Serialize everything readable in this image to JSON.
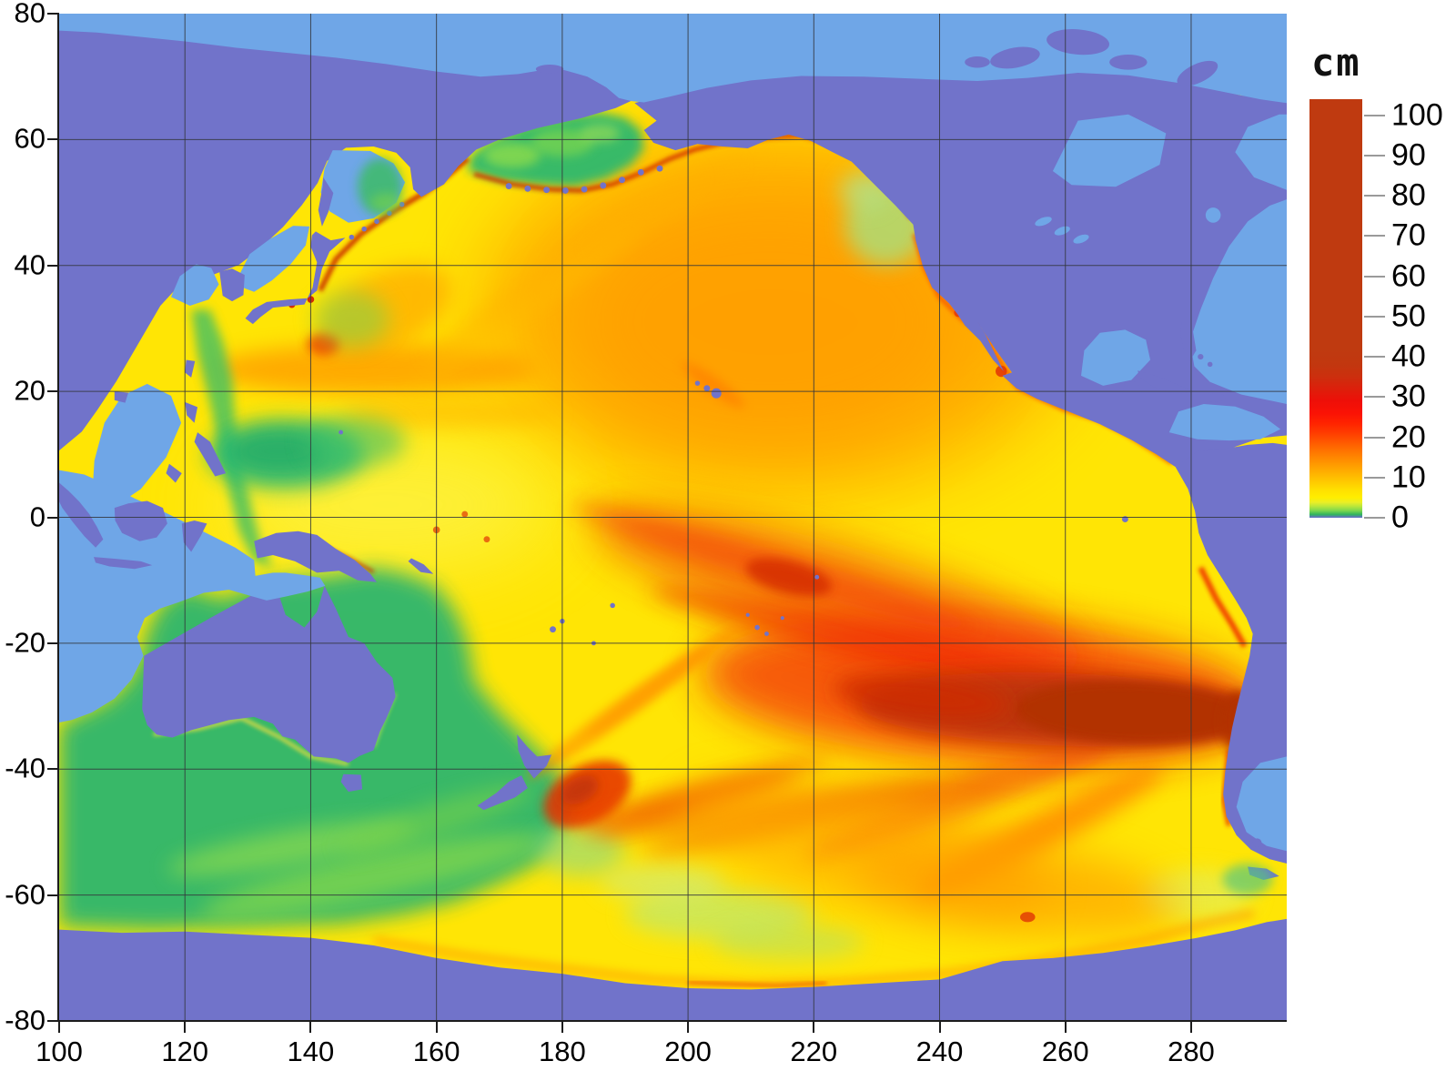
{
  "palette": {
    "bg": "#ffffff",
    "land": "#7173ca",
    "sea": "#6fa6e7",
    "field": "#ffe505",
    "grid": "#33363c",
    "axis": "#1c1c1c",
    "cbTick": "#9a9a9a",
    "green": "#2db66e",
    "orange": "#ffa102",
    "red": "#f32008",
    "beam": "#bc3408"
  },
  "chart_data": {
    "type": "heatmap",
    "title": "",
    "x_axis": {
      "ticks": [
        100,
        120,
        140,
        160,
        180,
        200,
        220,
        240,
        260,
        280
      ],
      "range": [
        100,
        295.2
      ],
      "gridlines": true
    },
    "y_axis": {
      "ticks": [
        80,
        60,
        40,
        20,
        0,
        -20,
        -40,
        -60,
        -80
      ],
      "range": [
        -80,
        80
      ],
      "gridlines": true
    },
    "colorbar": {
      "label": "cm",
      "ticks": [
        0,
        10,
        20,
        30,
        40,
        50,
        60,
        70,
        80,
        90,
        100
      ],
      "range": [
        0,
        104
      ],
      "stops": [
        [
          0,
          "#6b68cf"
        ],
        [
          0.8,
          "#2fb45e"
        ],
        [
          1.8,
          "#7ed74d"
        ],
        [
          2.8,
          "#b7e63b"
        ],
        [
          3.8,
          "#e9ef27"
        ],
        [
          5,
          "#ffee00"
        ],
        [
          7,
          "#ffdf00"
        ],
        [
          9,
          "#ffc900"
        ],
        [
          11,
          "#ffb300"
        ],
        [
          13,
          "#ff9d00"
        ],
        [
          15,
          "#ff8600"
        ],
        [
          17,
          "#ff6f00"
        ],
        [
          19,
          "#ff5600"
        ],
        [
          21,
          "#ff3d00"
        ],
        [
          23.5,
          "#ff2300"
        ],
        [
          26,
          "#fa1205"
        ],
        [
          29,
          "#ee0f08"
        ],
        [
          32,
          "#dd1f0b"
        ],
        [
          35,
          "#cc2f0e"
        ],
        [
          38,
          "#c2370f"
        ],
        [
          42,
          "#bf3a10"
        ],
        [
          104,
          "#bf3a10"
        ]
      ]
    },
    "map": {
      "region": "Pacific Ocean tsunami maximum wave height field",
      "units": "cm",
      "source_epicenter": {
        "lon": 287,
        "lat": -34
      },
      "max_beam": {
        "lat_band": [
          -36,
          -23
        ],
        "lon_extent": [
          235,
          290
        ],
        "value_cm": ">40"
      },
      "land_masses": [
        "Asia",
        "Australia",
        "North America",
        "South America",
        "Antarctica",
        "New Zealand",
        "Japan",
        "Indonesia",
        "Philippines"
      ]
    }
  }
}
